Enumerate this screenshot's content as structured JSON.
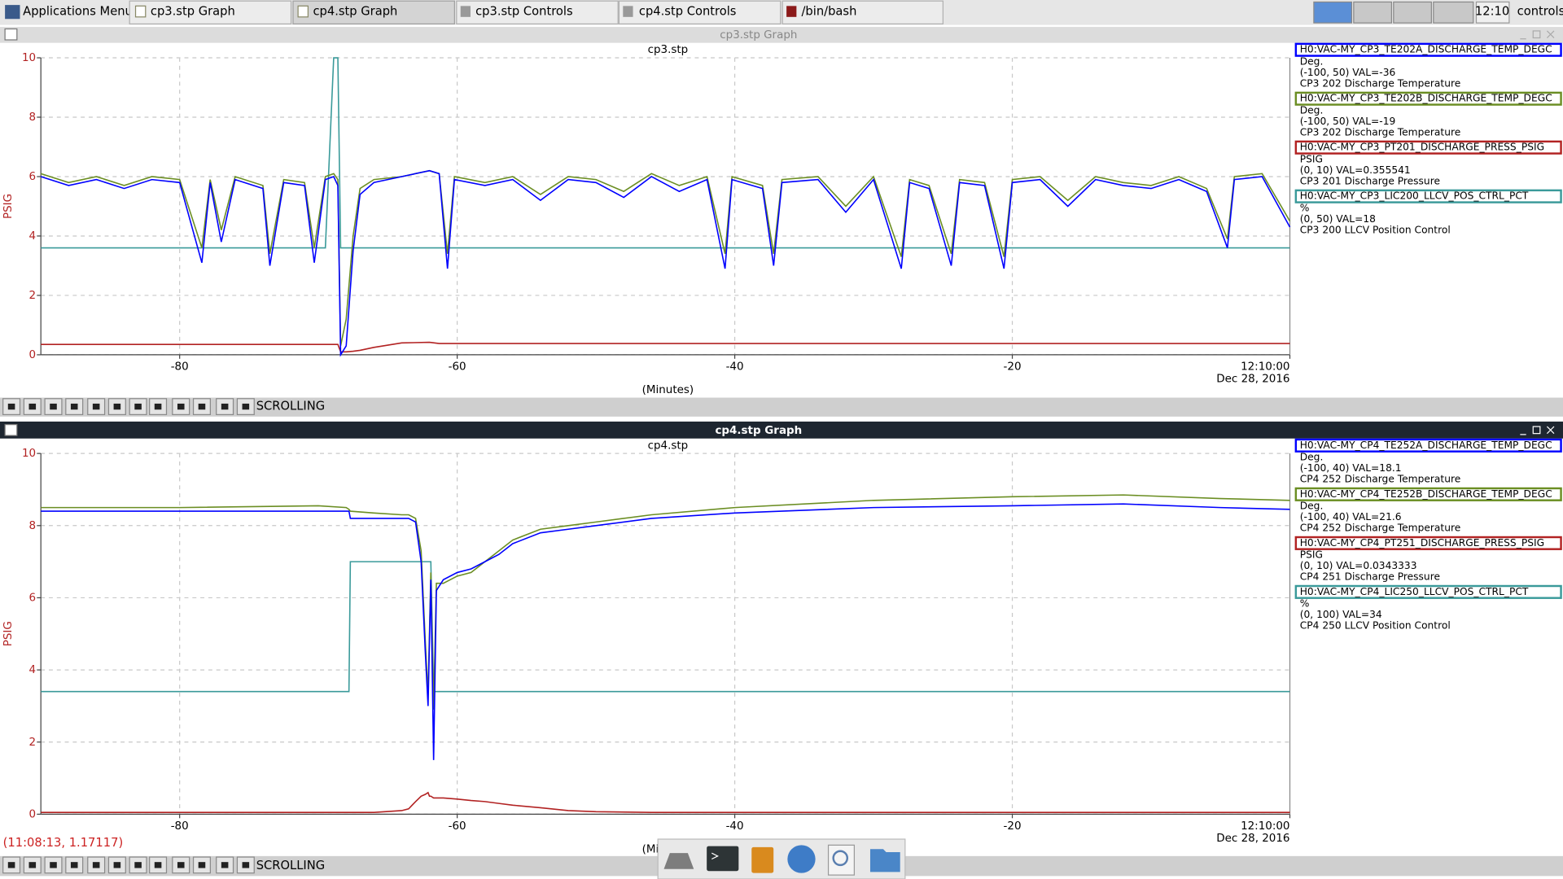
{
  "taskbar": {
    "apps_menu": "Applications Menu",
    "tasks": [
      "cp3.stp Graph",
      "cp4.stp Graph",
      "cp3.stp Controls",
      "cp4.stp Controls",
      "/bin/bash"
    ],
    "clock": "12:10",
    "user": "controls"
  },
  "windows": [
    {
      "title": "cp3.stp Graph",
      "mode": "SCROLLING"
    },
    {
      "title": "cp4.stp Graph",
      "mode": "SCROLLING",
      "status": "(11:08:13, 1.17117)"
    }
  ],
  "chart_data": [
    {
      "type": "line",
      "title": "cp3.stp",
      "x_label": "(Minutes)",
      "y_label": "PSIG",
      "x_date_label": "Dec 28, 2016",
      "xlim": [
        -90,
        0
      ],
      "xticks": [
        -80,
        -60,
        -40,
        -20,
        {
          "value": 0,
          "label": "12:10:00"
        }
      ],
      "ylim": [
        0,
        10
      ],
      "yticks": [
        0,
        2,
        4,
        6,
        8,
        10
      ],
      "grid": true,
      "x": [
        -90,
        -88,
        -86,
        -84,
        -82,
        -80,
        -78.4,
        -77.8,
        -77,
        -76,
        -74,
        -73.5,
        -72.5,
        -71,
        -70.3,
        -69.5,
        -68.9,
        -68.6,
        -68.4,
        -68,
        -67.5,
        -67,
        -66,
        -64,
        -62,
        -61.3,
        -60.7,
        -60.2,
        -58,
        -56,
        -54,
        -52,
        -50,
        -48,
        -46,
        -44,
        -42,
        -40.7,
        -40.2,
        -38,
        -37.2,
        -36.6,
        -34,
        -32,
        -30,
        -28,
        -27.4,
        -26,
        -24.4,
        -23.8,
        -22,
        -20.6,
        -20,
        -18,
        -16,
        -14,
        -12,
        -10,
        -8,
        -6,
        -4.5,
        -4,
        -2,
        0
      ],
      "series": [
        {
          "name": "H0:VAC-MY_CP3_TE202A_DISCHARGE_TEMP_DEGC",
          "color": "#0000ff",
          "units": "Deg.",
          "info": "(-100, 50) VAL=-36",
          "description": "CP3 202 Discharge Temperature",
          "values": [
            6.0,
            5.7,
            5.9,
            5.6,
            5.9,
            5.8,
            3.1,
            5.8,
            3.8,
            5.9,
            5.6,
            3.0,
            5.8,
            5.7,
            3.1,
            5.9,
            6.0,
            5.7,
            0.0,
            0.3,
            3.5,
            5.4,
            5.8,
            6.0,
            6.2,
            6.1,
            2.9,
            5.9,
            5.7,
            5.9,
            5.2,
            5.9,
            5.8,
            5.3,
            6.0,
            5.5,
            5.9,
            2.9,
            5.9,
            5.6,
            3.0,
            5.8,
            5.9,
            4.8,
            5.9,
            2.9,
            5.8,
            5.6,
            3.0,
            5.8,
            5.7,
            2.9,
            5.8,
            5.9,
            5.0,
            5.9,
            5.7,
            5.6,
            5.9,
            5.5,
            3.6,
            5.9,
            6.0,
            4.3
          ]
        },
        {
          "name": "H0:VAC-MY_CP3_TE202B_DISCHARGE_TEMP_DEGC",
          "color": "#6b8e23",
          "units": "Deg.",
          "info": "(-100, 50) VAL=-19",
          "description": "CP3 202 Discharge Temperature",
          "values": [
            6.1,
            5.8,
            6.0,
            5.7,
            6.0,
            5.9,
            3.6,
            5.9,
            4.2,
            6.0,
            5.7,
            3.4,
            5.9,
            5.8,
            3.6,
            6.0,
            6.1,
            5.9,
            0.3,
            1.2,
            4.0,
            5.6,
            5.9,
            6.0,
            6.2,
            6.1,
            3.4,
            6.0,
            5.8,
            6.0,
            5.4,
            6.0,
            5.9,
            5.5,
            6.1,
            5.7,
            6.0,
            3.4,
            6.0,
            5.7,
            3.4,
            5.9,
            6.0,
            5.0,
            6.0,
            3.3,
            5.9,
            5.7,
            3.4,
            5.9,
            5.8,
            3.3,
            5.9,
            6.0,
            5.2,
            6.0,
            5.8,
            5.7,
            6.0,
            5.6,
            3.9,
            6.0,
            6.1,
            4.5
          ]
        },
        {
          "name": "H0:VAC-MY_CP3_PT201_DISCHARGE_PRESS_PSIG",
          "color": "#b22222",
          "units": "PSIG",
          "info": "(0, 10) VAL=0.355541",
          "description": "CP3 201 Discharge Pressure",
          "values": [
            0.35,
            0.35,
            0.35,
            0.35,
            0.35,
            0.35,
            0.35,
            0.35,
            0.35,
            0.35,
            0.35,
            0.35,
            0.35,
            0.35,
            0.35,
            0.35,
            0.35,
            0.35,
            0.1,
            0.1,
            0.12,
            0.15,
            0.25,
            0.4,
            0.42,
            0.38,
            0.38,
            0.38,
            0.38,
            0.38,
            0.38,
            0.38,
            0.38,
            0.38,
            0.38,
            0.38,
            0.38,
            0.38,
            0.38,
            0.38,
            0.38,
            0.38,
            0.38,
            0.38,
            0.38,
            0.38,
            0.38,
            0.38,
            0.38,
            0.38,
            0.38,
            0.38,
            0.38,
            0.38,
            0.38,
            0.38,
            0.38,
            0.38,
            0.38,
            0.38,
            0.38,
            0.38,
            0.38,
            0.38
          ]
        },
        {
          "name": "H0:VAC-MY_CP3_LIC200_LLCV_POS_CTRL_PCT",
          "color": "#3a9a9a",
          "units": "%",
          "info": "(0, 50) VAL=18",
          "description": "CP3 200 LLCV Position Control",
          "values": [
            3.6,
            3.6,
            3.6,
            3.6,
            3.6,
            3.6,
            3.6,
            3.6,
            3.6,
            3.6,
            3.6,
            3.6,
            3.6,
            3.6,
            3.6,
            3.6,
            10,
            10,
            3.6,
            3.6,
            3.6,
            3.6,
            3.6,
            3.6,
            3.6,
            3.6,
            3.6,
            3.6,
            3.6,
            3.6,
            3.6,
            3.6,
            3.6,
            3.6,
            3.6,
            3.6,
            3.6,
            3.6,
            3.6,
            3.6,
            3.6,
            3.6,
            3.6,
            3.6,
            3.6,
            3.6,
            3.6,
            3.6,
            3.6,
            3.6,
            3.6,
            3.6,
            3.6,
            3.6,
            3.6,
            3.6,
            3.6,
            3.6,
            3.6,
            3.6,
            3.6,
            3.6,
            3.6,
            3.6
          ]
        }
      ]
    },
    {
      "type": "line",
      "title": "cp4.stp",
      "x_label": "(Minutes)",
      "y_label": "PSIG",
      "x_date_label": "Dec 28, 2016",
      "xlim": [
        -90,
        0
      ],
      "xticks": [
        -80,
        -60,
        -40,
        -20,
        {
          "value": 0,
          "label": "12:10:00"
        }
      ],
      "ylim": [
        0,
        10
      ],
      "yticks": [
        0,
        2,
        4,
        6,
        8,
        10
      ],
      "grid": true,
      "x": [
        -90,
        -80,
        -70,
        -68,
        -67.8,
        -67.7,
        -66,
        -64,
        -63.5,
        -63,
        -62.6,
        -62.3,
        -62.1,
        -62,
        -61.9,
        -61.7,
        -61.5,
        -61,
        -60,
        -59,
        -58,
        -57,
        -56,
        -54,
        -52,
        -50,
        -46,
        -40,
        -30,
        -20,
        -12,
        -5,
        0
      ],
      "series": [
        {
          "name": "H0:VAC-MY_CP4_TE252A_DISCHARGE_TEMP_DEGC",
          "color": "#0000ff",
          "units": "Deg.",
          "info": "(-100, 40) VAL=18.1",
          "description": "CP4 252 Discharge Temperature",
          "values": [
            8.4,
            8.4,
            8.4,
            8.4,
            8.4,
            8.2,
            8.2,
            8.2,
            8.2,
            8.1,
            7.0,
            4.5,
            3.0,
            4.8,
            6.5,
            1.5,
            6.2,
            6.5,
            6.7,
            6.8,
            7.0,
            7.2,
            7.5,
            7.8,
            7.9,
            8.0,
            8.2,
            8.35,
            8.5,
            8.55,
            8.6,
            8.5,
            8.45
          ]
        },
        {
          "name": "H0:VAC-MY_CP4_TE252B_DISCHARGE_TEMP_DEGC",
          "color": "#6b8e23",
          "units": "Deg.",
          "info": "(-100, 40) VAL=21.6",
          "description": "CP4 252 Discharge Temperature",
          "values": [
            8.5,
            8.5,
            8.55,
            8.5,
            8.45,
            8.4,
            8.35,
            8.3,
            8.3,
            8.2,
            7.3,
            4.8,
            3.3,
            5.0,
            6.7,
            2.9,
            6.4,
            6.4,
            6.6,
            6.7,
            7.0,
            7.3,
            7.6,
            7.9,
            8.0,
            8.1,
            8.3,
            8.5,
            8.7,
            8.8,
            8.85,
            8.75,
            8.7
          ]
        },
        {
          "name": "H0:VAC-MY_CP4_PT251_DISCHARGE_PRESS_PSIG",
          "color": "#b22222",
          "units": "PSIG",
          "info": "(0, 10) VAL=0.0343333",
          "description": "CP4 251 Discharge Pressure",
          "values": [
            0.05,
            0.05,
            0.05,
            0.05,
            0.05,
            0.05,
            0.05,
            0.1,
            0.15,
            0.35,
            0.5,
            0.55,
            0.6,
            0.5,
            0.5,
            0.45,
            0.45,
            0.45,
            0.42,
            0.38,
            0.35,
            0.3,
            0.25,
            0.18,
            0.1,
            0.07,
            0.05,
            0.05,
            0.05,
            0.05,
            0.05,
            0.05,
            0.05
          ]
        },
        {
          "name": "H0:VAC-MY_CP4_LIC250_LLCV_POS_CTRL_PCT",
          "color": "#3a9a9a",
          "units": "%",
          "info": "(0, 100) VAL=34",
          "description": "CP4 250 LLCV Position Control",
          "values": [
            3.4,
            3.4,
            3.4,
            3.4,
            3.4,
            7.0,
            7.0,
            7.0,
            7.0,
            7.0,
            7.0,
            7.0,
            7.0,
            7.0,
            7.0,
            3.4,
            3.4,
            3.4,
            3.4,
            3.4,
            3.4,
            3.4,
            3.4,
            3.4,
            3.4,
            3.4,
            3.4,
            3.4,
            3.4,
            3.4,
            3.4,
            3.4,
            3.4
          ]
        }
      ]
    }
  ]
}
